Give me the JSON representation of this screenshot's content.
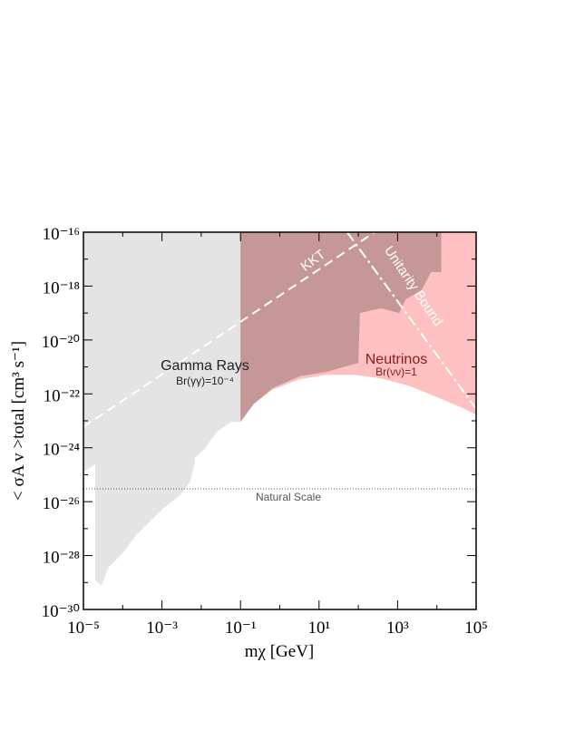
{
  "chart_data": {
    "type": "area",
    "xlabel": "mχ [GeV]",
    "ylabel": "< σA v >total [cm³ s⁻¹]",
    "log_x": true,
    "log_y": true,
    "xlim": [
      1e-05,
      100000.0
    ],
    "ylim": [
      1e-30,
      1e-16
    ],
    "xticks": [
      {
        "value": 1e-05,
        "label": "10⁻⁵"
      },
      {
        "value": 0.001,
        "label": "10⁻³"
      },
      {
        "value": 0.1,
        "label": "10⁻¹"
      },
      {
        "value": 10,
        "label": "10¹"
      },
      {
        "value": 1000,
        "label": "10³"
      },
      {
        "value": 100000,
        "label": "10⁵"
      }
    ],
    "xminorticks": [
      0.0001,
      0.01,
      1,
      100,
      10000
    ],
    "yticks": [
      {
        "value": 1e-30,
        "label": "10⁻³⁰"
      },
      {
        "value": 1e-28,
        "label": "10⁻²⁸"
      },
      {
        "value": 1e-26,
        "label": "10⁻²⁶"
      },
      {
        "value": 1e-24,
        "label": "10⁻²⁴"
      },
      {
        "value": 1e-22,
        "label": "10⁻²²"
      },
      {
        "value": 1e-20,
        "label": "10⁻²⁰"
      },
      {
        "value": 1e-18,
        "label": "10⁻¹⁸"
      },
      {
        "value": 1e-16,
        "label": "10⁻¹⁶"
      }
    ],
    "yminorticks": [
      1e-29,
      1e-27,
      1e-25,
      1e-23,
      1e-21,
      1e-19,
      1e-17
    ],
    "overlap_color": "#c69797",
    "series": [
      {
        "name": "Gamma Rays",
        "note": "Br(γγ)=10⁻⁴",
        "color": "#e4e4e4",
        "x": [
          1e-05,
          2e-05,
          2e-05,
          2.9e-05,
          4.4e-05,
          5.8e-05,
          9.8e-05,
          0.00022,
          0.00049,
          0.0011,
          0.0031,
          0.0053,
          0.0069,
          0.0069,
          0.012,
          0.026,
          0.058,
          0.1,
          0.22,
          0.64,
          3.2,
          15.5,
          100,
          110,
          375,
          1100,
          1600,
          4100,
          7100,
          13000
        ],
        "y": [
          1.3e-25,
          2.4e-25,
          1.2e-29,
          8e-30,
          3.8e-29,
          5.5e-29,
          1.2e-28,
          5.6e-28,
          1.8e-27,
          5.8e-27,
          1.9e-26,
          5.9e-26,
          2.8e-25,
          4.2e-25,
          9e-25,
          4.2e-24,
          9.2e-24,
          9.2e-24,
          4.3e-23,
          1.6e-22,
          4.5e-22,
          6.5e-22,
          1.4e-21,
          1e-19,
          1.5e-19,
          1e-19,
          3.2e-19,
          7e-19,
          3.3e-18,
          3.3e-18
        ]
      },
      {
        "name": "Neutrinos",
        "note": "Br(νν)=1",
        "color": "#ffc0c1",
        "x": [
          0.1,
          0.22,
          0.64,
          3.2,
          15.5,
          76,
          375,
          1900,
          9100,
          45000,
          100000
        ],
        "y": [
          9.2e-24,
          4.3e-23,
          1.4e-22,
          3.5e-22,
          5.1e-22,
          5.1e-22,
          3.8e-22,
          2e-22,
          8.1e-23,
          3e-23,
          1.7e-23
        ]
      }
    ],
    "lines": [
      {
        "name": "KKT",
        "color": "#ffffff",
        "x": [
          1e-05,
          260
        ],
        "y": [
          6e-24,
          1e-16
        ]
      },
      {
        "name": "Unitarity Bound",
        "color": "#ffffff",
        "x": [
          52,
          100000
        ],
        "y": [
          1e-16,
          2.8e-23
        ]
      }
    ],
    "reference": {
      "name": "Natural Scale",
      "value": 3e-26
    }
  }
}
